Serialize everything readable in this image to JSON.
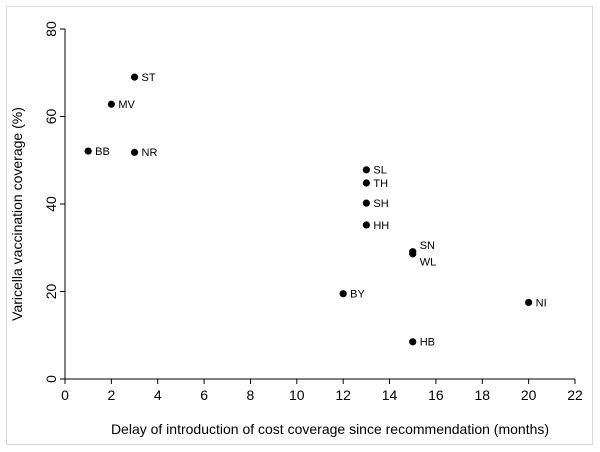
{
  "chart_data": {
    "type": "scatter",
    "title": "",
    "xlabel": "Delay of introduction of cost coverage since recommendation (months)",
    "ylabel": "Varicella vaccination coverage (%)",
    "xlim": [
      0,
      22
    ],
    "ylim": [
      0,
      80
    ],
    "xticks": [
      0,
      2,
      4,
      6,
      8,
      10,
      12,
      14,
      16,
      18,
      20,
      22
    ],
    "yticks": [
      0,
      20,
      40,
      60,
      80
    ],
    "grid": false,
    "points": [
      {
        "label": "ST",
        "x": 3,
        "y": 69
      },
      {
        "label": "MV",
        "x": 2,
        "y": 62.8
      },
      {
        "label": "BB",
        "x": 1,
        "y": 52.1
      },
      {
        "label": "NR",
        "x": 3,
        "y": 51.8
      },
      {
        "label": "SL",
        "x": 13,
        "y": 47.8
      },
      {
        "label": "TH",
        "x": 13,
        "y": 44.8
      },
      {
        "label": "SH",
        "x": 13,
        "y": 40.2
      },
      {
        "label": "HH",
        "x": 13,
        "y": 35.2
      },
      {
        "label": "SN",
        "x": 15,
        "y": 29.1
      },
      {
        "label": "WL",
        "x": 15,
        "y": 28.6
      },
      {
        "label": "BY",
        "x": 12,
        "y": 19.5
      },
      {
        "label": "NI",
        "x": 20,
        "y": 17.5
      },
      {
        "label": "HB",
        "x": 15,
        "y": 8.5
      }
    ]
  }
}
